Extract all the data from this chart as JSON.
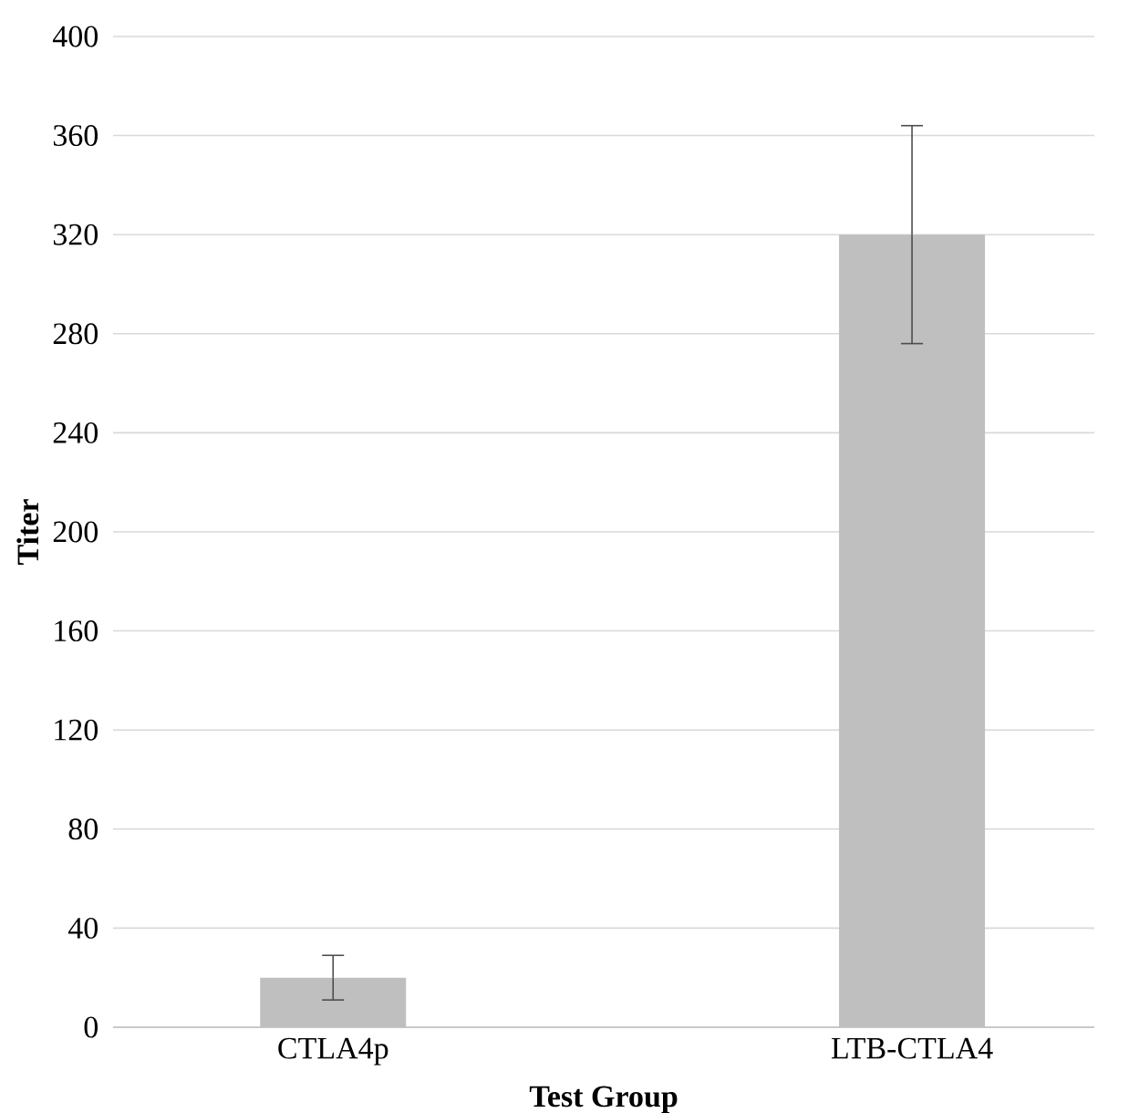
{
  "chart_data": {
    "type": "bar",
    "xlabel": "Test Group",
    "ylabel": "Titer",
    "categories": [
      "CTLA4p",
      "LTB-CTLA4"
    ],
    "values": [
      20,
      320
    ],
    "errors": [
      9,
      44
    ],
    "color": "#bfbfbf",
    "ylim": [
      0,
      400
    ],
    "yticks": [
      0,
      40,
      80,
      120,
      160,
      200,
      240,
      280,
      320,
      360,
      400
    ],
    "grid": "y"
  }
}
